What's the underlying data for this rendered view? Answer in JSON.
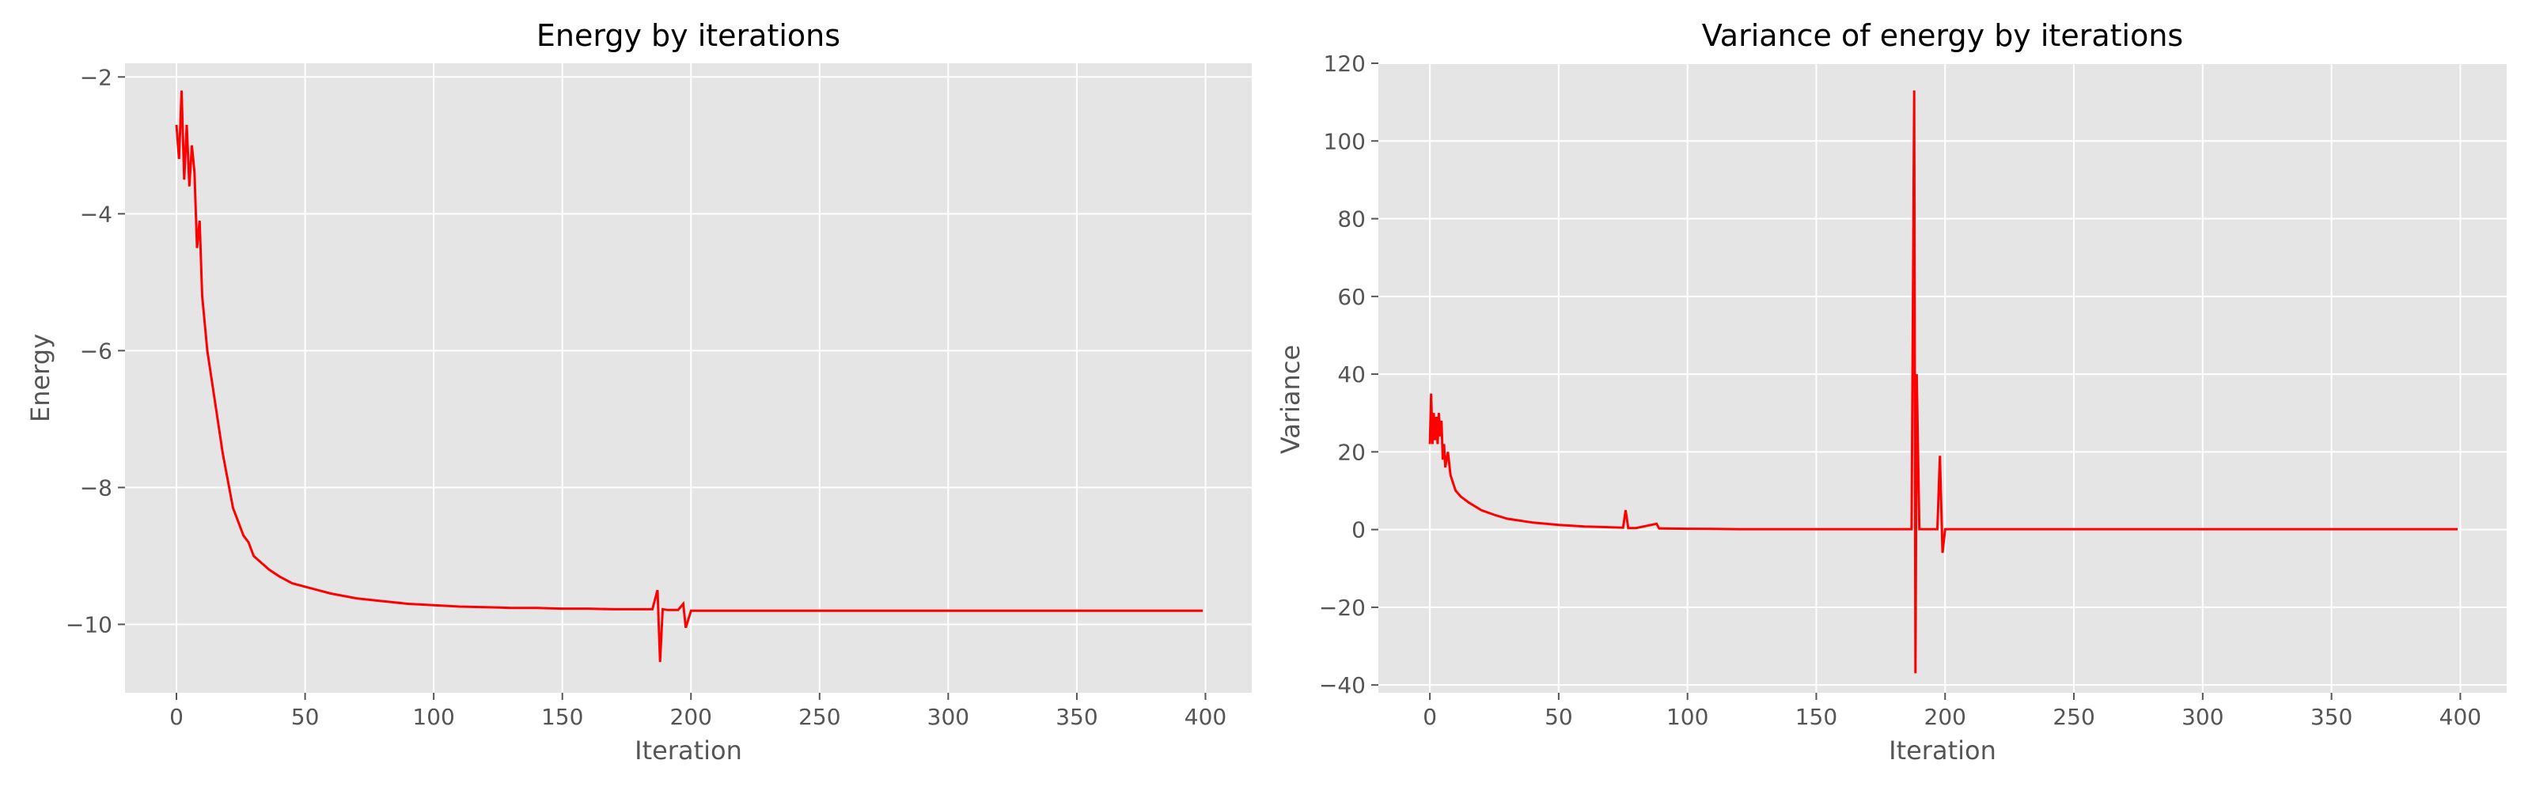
{
  "chart_data": [
    {
      "type": "line",
      "title": "Energy by iterations",
      "xlabel": "Iteration",
      "ylabel": "Energy",
      "xlim": [
        -20,
        418
      ],
      "ylim": [
        -11,
        -1.8
      ],
      "xticks": [
        0,
        50,
        100,
        150,
        200,
        250,
        300,
        350,
        400
      ],
      "yticks": [
        -10,
        -8,
        -6,
        -4,
        -2
      ],
      "xtick_labels": [
        "0",
        "50",
        "100",
        "150",
        "200",
        "250",
        "300",
        "350",
        "400"
      ],
      "ytick_labels": [
        "−10",
        "−8",
        "−6",
        "−4",
        "−2"
      ],
      "grid": true,
      "series": [
        {
          "color": "#ff0000",
          "x": [
            0,
            1,
            2,
            3,
            4,
            5,
            6,
            7,
            8,
            9,
            10,
            12,
            14,
            16,
            18,
            20,
            22,
            24,
            26,
            28,
            30,
            33,
            36,
            40,
            45,
            50,
            55,
            60,
            70,
            80,
            90,
            100,
            110,
            120,
            130,
            140,
            150,
            160,
            170,
            180,
            185,
            187,
            188,
            189,
            191,
            195,
            197,
            198,
            200,
            210,
            220,
            230,
            240,
            250,
            260,
            270,
            280,
            290,
            300,
            310,
            320,
            330,
            340,
            350,
            360,
            370,
            380,
            390,
            399
          ],
          "y": [
            -2.7,
            -3.2,
            -2.2,
            -3.5,
            -2.7,
            -3.6,
            -3.0,
            -3.4,
            -4.5,
            -4.1,
            -5.2,
            -6.0,
            -6.5,
            -7.0,
            -7.5,
            -7.9,
            -8.3,
            -8.5,
            -8.7,
            -8.8,
            -9.0,
            -9.1,
            -9.2,
            -9.3,
            -9.4,
            -9.45,
            -9.5,
            -9.55,
            -9.62,
            -9.66,
            -9.7,
            -9.72,
            -9.74,
            -9.75,
            -9.76,
            -9.76,
            -9.77,
            -9.77,
            -9.78,
            -9.78,
            -9.78,
            -9.5,
            -10.55,
            -9.78,
            -9.79,
            -9.79,
            -9.7,
            -10.05,
            -9.8,
            -9.8,
            -9.8,
            -9.8,
            -9.8,
            -9.8,
            -9.8,
            -9.8,
            -9.8,
            -9.8,
            -9.8,
            -9.8,
            -9.8,
            -9.8,
            -9.8,
            -9.8,
            -9.8,
            -9.8,
            -9.8,
            -9.8,
            -9.8
          ]
        }
      ]
    },
    {
      "type": "line",
      "title": "Variance of energy by iterations",
      "xlabel": "Iteration",
      "ylabel": "Variance",
      "xlim": [
        -20,
        418
      ],
      "ylim": [
        -42,
        120
      ],
      "xticks": [
        0,
        50,
        100,
        150,
        200,
        250,
        300,
        350,
        400
      ],
      "yticks": [
        -40,
        -20,
        0,
        20,
        40,
        60,
        80,
        100,
        120
      ],
      "xtick_labels": [
        "0",
        "50",
        "100",
        "150",
        "200",
        "250",
        "300",
        "350",
        "400"
      ],
      "ytick_labels": [
        "−40",
        "−20",
        "0",
        "20",
        "40",
        "60",
        "80",
        "100",
        "120"
      ],
      "grid": true,
      "series": [
        {
          "color": "#ff0000",
          "x": [
            0,
            0.5,
            1,
            1.5,
            2,
            2.5,
            3,
            3.5,
            4,
            4.5,
            5,
            5.5,
            6,
            7,
            8,
            9,
            10,
            12,
            15,
            20,
            25,
            30,
            40,
            50,
            60,
            70,
            75,
            76,
            77,
            80,
            88,
            89,
            90,
            100,
            120,
            150,
            180,
            186,
            187,
            188,
            188.5,
            189,
            190,
            196,
            197,
            198,
            199,
            200,
            220,
            250,
            300,
            350,
            399
          ],
          "y": [
            22,
            35,
            22,
            30,
            23,
            29,
            22,
            30,
            24,
            28,
            18,
            22,
            16,
            20,
            14,
            12,
            10,
            8.5,
            7,
            5,
            3.8,
            2.8,
            1.8,
            1.2,
            0.8,
            0.6,
            0.5,
            5,
            0.4,
            0.4,
            1.5,
            0.3,
            0.3,
            0.2,
            0.1,
            0.1,
            0.1,
            0.1,
            0.1,
            113,
            -37,
            40,
            0.1,
            0.1,
            0.1,
            19,
            -6,
            0.1,
            0.1,
            0.1,
            0.1,
            0.1,
            0.1
          ]
        }
      ]
    }
  ]
}
